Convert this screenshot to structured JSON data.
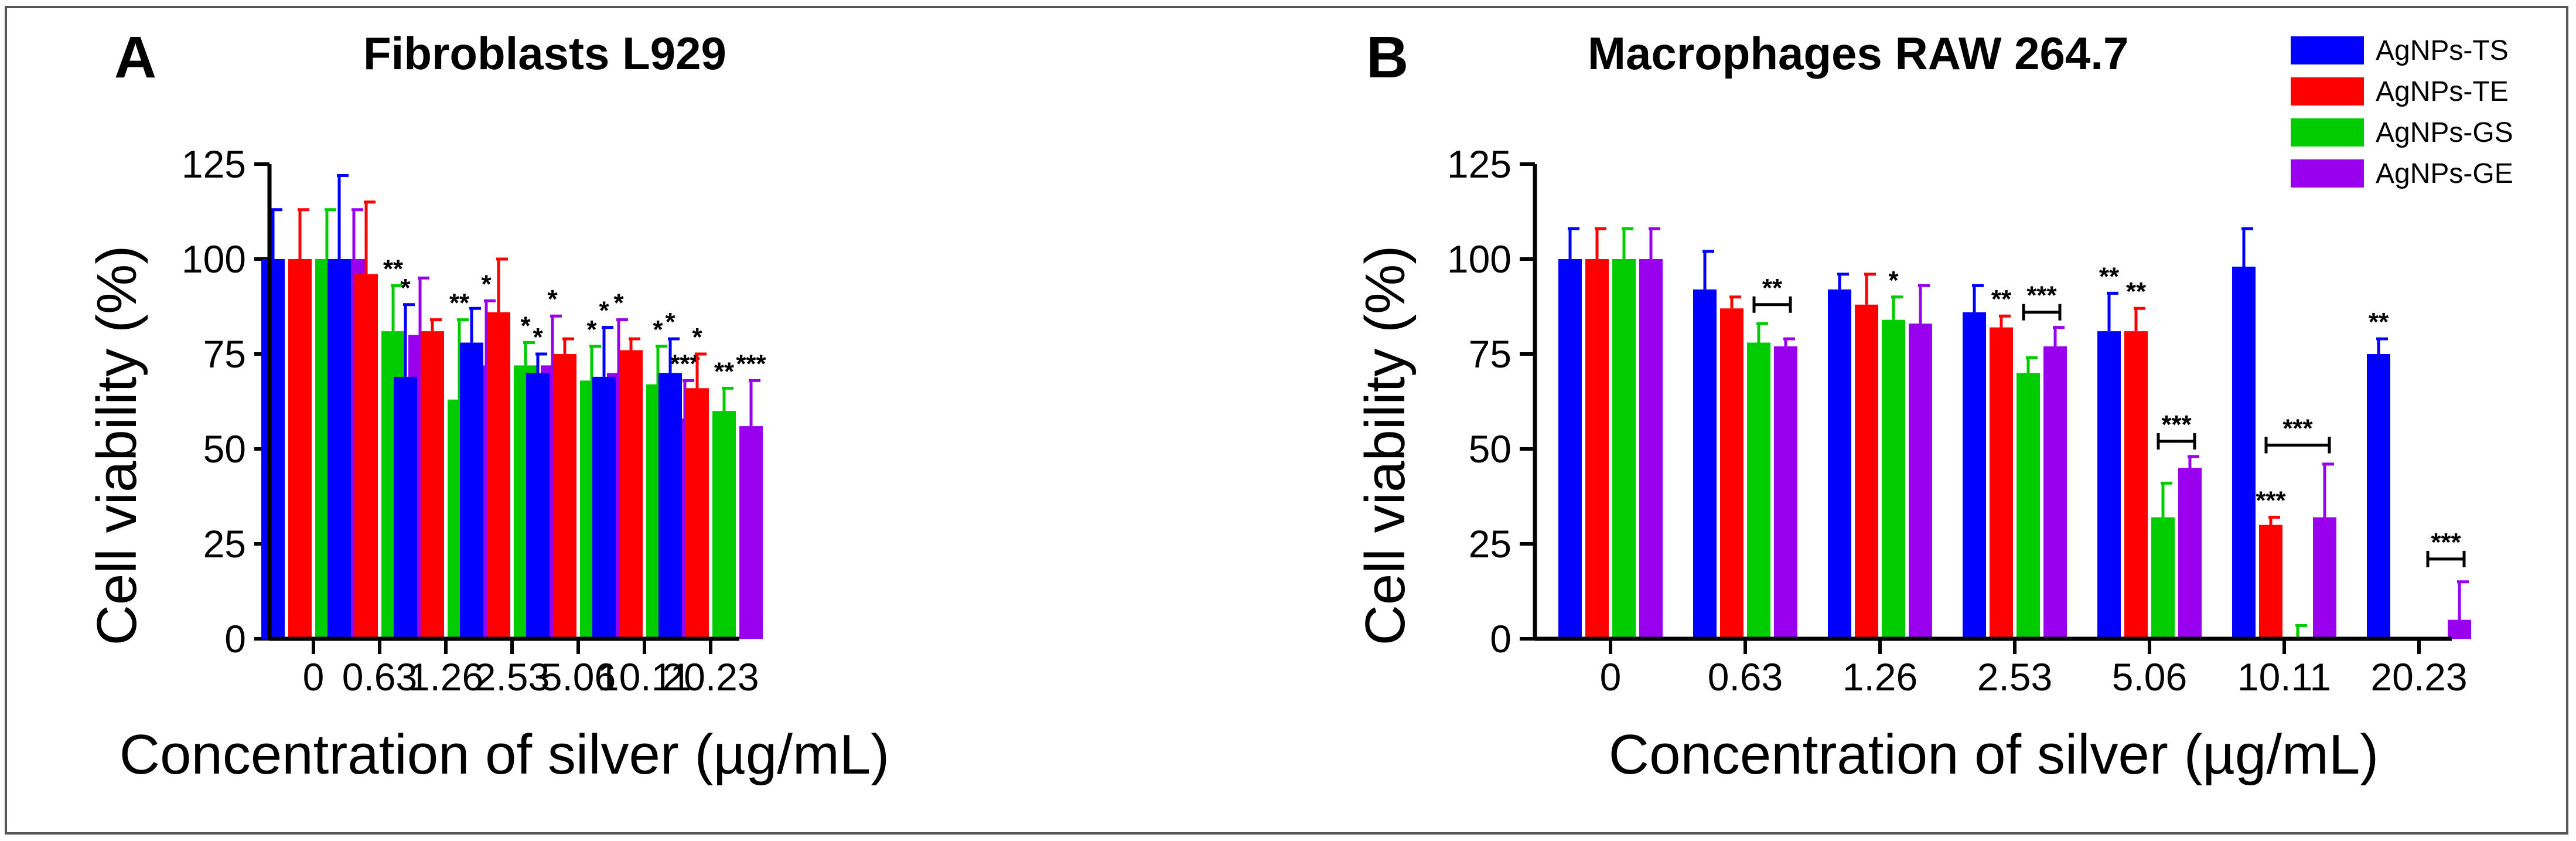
{
  "legend": [
    {
      "name": "AgNPs-TS",
      "color": "#0000ff"
    },
    {
      "name": "AgNPs-TE",
      "color": "#ff0000"
    },
    {
      "name": "AgNPs-GS",
      "color": "#00cc00"
    },
    {
      "name": "AgNPs-GE",
      "color": "#9900ee"
    }
  ],
  "chart_data": [
    {
      "type": "bar",
      "panel_label": "A",
      "title": "Fibroblasts L929",
      "xlabel": "Concentration of silver (µg/mL)",
      "ylabel": "Cell viability (%)",
      "ylim": [
        0,
        125
      ],
      "yticks": [
        "0",
        "25",
        "50",
        "75",
        "100",
        "125"
      ],
      "categories": [
        "0",
        "0.63",
        "1.26",
        "2.53",
        "5.06",
        "10.11",
        "20.23"
      ],
      "series": [
        {
          "name": "AgNPs-TS",
          "values": [
            100,
            100,
            69,
            78,
            70,
            69,
            70
          ],
          "errors": [
            13,
            22,
            19,
            9,
            5,
            13,
            9
          ],
          "sig": [
            "",
            "",
            "*",
            "",
            "*",
            "*",
            "*"
          ]
        },
        {
          "name": "AgNPs-TE",
          "values": [
            100,
            96,
            81,
            86,
            75,
            76,
            66
          ],
          "errors": [
            13,
            19,
            3,
            14,
            4,
            3,
            9
          ],
          "sig": [
            "",
            "",
            "",
            "",
            "",
            "",
            "*"
          ]
        },
        {
          "name": "AgNPs-GS",
          "values": [
            100,
            81,
            63,
            72,
            68,
            67,
            60
          ],
          "errors": [
            13,
            12,
            21,
            6,
            9,
            10,
            6
          ],
          "sig": [
            "",
            "**",
            "**",
            "*",
            "*",
            "*",
            "**"
          ]
        },
        {
          "name": "AgNPs-GE",
          "values": [
            100,
            80,
            72,
            72,
            70,
            58,
            56
          ],
          "errors": [
            13,
            15,
            17,
            13,
            14,
            10,
            12
          ],
          "sig": [
            "",
            "",
            "*",
            "*",
            "*",
            "***",
            "***"
          ]
        }
      ],
      "brackets": []
    },
    {
      "type": "bar",
      "panel_label": "B",
      "title": "Macrophages RAW 264.7",
      "xlabel": "Concentration of silver (µg/mL)",
      "ylabel": "Cell viability (%)",
      "ylim": [
        0,
        125
      ],
      "yticks": [
        "0",
        "25",
        "50",
        "75",
        "100",
        "125"
      ],
      "categories": [
        "0",
        "0.63",
        "1.26",
        "2.53",
        "5.06",
        "10.11",
        "20.23"
      ],
      "series": [
        {
          "name": "AgNPs-TS",
          "values": [
            100,
            92,
            92,
            86,
            81,
            98,
            75
          ],
          "errors": [
            8,
            10,
            4,
            7,
            10,
            10,
            4
          ],
          "sig": [
            "",
            "",
            "",
            "",
            "**",
            "",
            "**"
          ]
        },
        {
          "name": "AgNPs-TE",
          "values": [
            100,
            87,
            88,
            82,
            81,
            30,
            0.5
          ],
          "errors": [
            8,
            3,
            8,
            3,
            6,
            2,
            0
          ],
          "sig": [
            "",
            "",
            "",
            "**",
            "**",
            "***",
            ""
          ]
        },
        {
          "name": "AgNPs-GS",
          "values": [
            100,
            78,
            84,
            70,
            32,
            0.5,
            0
          ],
          "errors": [
            8,
            5,
            6,
            4,
            9,
            3,
            0
          ],
          "sig": [
            "",
            "",
            "*",
            "",
            "",
            "",
            ""
          ]
        },
        {
          "name": "AgNPs-GE",
          "values": [
            100,
            77,
            83,
            77,
            45,
            32,
            5
          ],
          "errors": [
            8,
            2,
            10,
            5,
            3,
            14,
            10
          ],
          "sig": [
            "",
            "",
            "",
            "",
            "",
            "",
            ""
          ]
        }
      ],
      "brackets": [
        {
          "category": 1,
          "from": 2,
          "to": 3,
          "y": 88,
          "label": "**"
        },
        {
          "category": 3,
          "from": 2,
          "to": 3,
          "y": 86,
          "label": "***"
        },
        {
          "category": 4,
          "from": 2,
          "to": 3,
          "y": 52,
          "label": "***"
        },
        {
          "category": 5,
          "from": 1,
          "to": 3,
          "y": 51,
          "label": "***"
        },
        {
          "category": 6,
          "from": 2,
          "to": 3,
          "y": 21,
          "label": "***"
        }
      ]
    }
  ]
}
